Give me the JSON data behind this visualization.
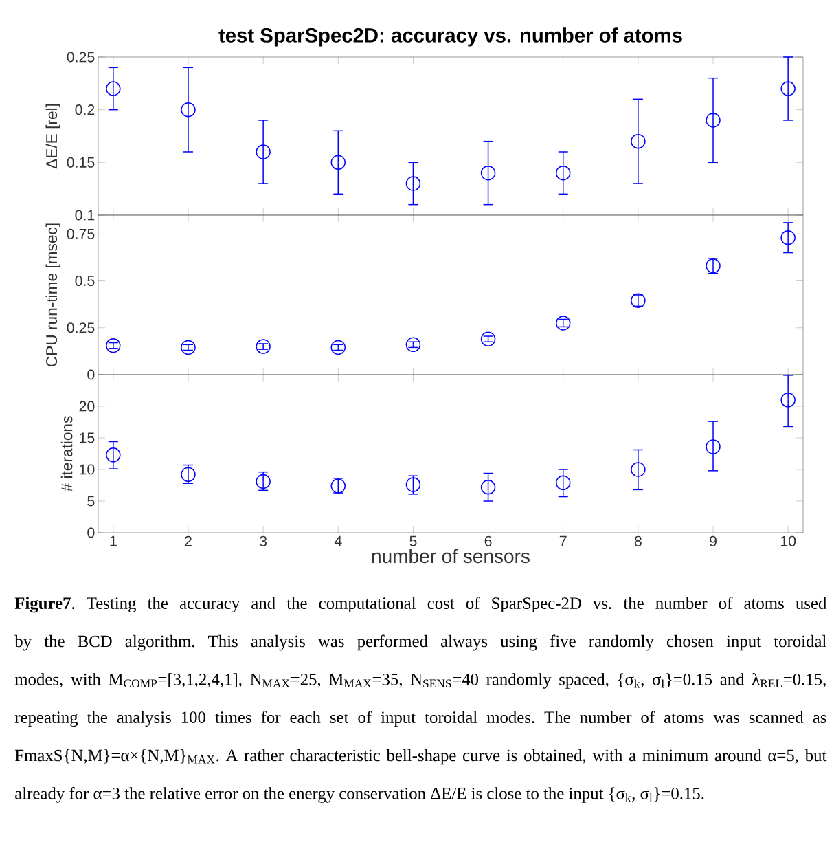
{
  "chart_data": [
    {
      "type": "scatter",
      "title": "test SparSpec2D: accuracy vs. number of atoms",
      "ylabel": "ΔE/E [rel]",
      "x": [
        1,
        2,
        3,
        4,
        5,
        6,
        7,
        8,
        9,
        10
      ],
      "xlim": [
        0.8,
        10.2
      ],
      "xticks": [
        1,
        2,
        3,
        4,
        5,
        6,
        7,
        8,
        9,
        10
      ],
      "ylim": [
        0.1,
        0.25
      ],
      "yticks": [
        0.1,
        0.15,
        0.2,
        0.25
      ],
      "tick_labels": "y",
      "marker": "circle",
      "series": [
        {
          "color": "#0000ff",
          "values": [
            0.22,
            0.2,
            0.16,
            0.15,
            0.13,
            0.14,
            0.14,
            0.17,
            0.19,
            0.22
          ],
          "errors": [
            [
              0.2,
              0.24
            ],
            [
              0.16,
              0.24
            ],
            [
              0.13,
              0.19
            ],
            [
              0.12,
              0.18
            ],
            [
              0.11,
              0.15
            ],
            [
              0.11,
              0.17
            ],
            [
              0.12,
              0.16
            ],
            [
              0.13,
              0.21
            ],
            [
              0.15,
              0.23
            ],
            [
              0.19,
              0.25
            ]
          ]
        }
      ]
    },
    {
      "type": "scatter",
      "ylabel": "CPU run-time [msec]",
      "x": [
        1,
        2,
        3,
        4,
        5,
        6,
        7,
        8,
        9,
        10
      ],
      "xlim": [
        0.8,
        10.2
      ],
      "xticks": [
        1,
        2,
        3,
        4,
        5,
        6,
        7,
        8,
        9,
        10
      ],
      "ylim": [
        0,
        0.85
      ],
      "yticks": [
        0,
        0.25,
        0.5,
        0.75
      ],
      "tick_labels": "y",
      "marker": "circle",
      "series": [
        {
          "color": "#0000ff",
          "values": [
            0.155,
            0.145,
            0.15,
            0.145,
            0.16,
            0.19,
            0.275,
            0.395,
            0.58,
            0.73
          ],
          "errors": [
            [
              0.14,
              0.17
            ],
            [
              0.13,
              0.16
            ],
            [
              0.135,
              0.165
            ],
            [
              0.13,
              0.16
            ],
            [
              0.145,
              0.175
            ],
            [
              0.175,
              0.205
            ],
            [
              0.255,
              0.295
            ],
            [
              0.365,
              0.425
            ],
            [
              0.54,
              0.62
            ],
            [
              0.65,
              0.81
            ]
          ]
        }
      ]
    },
    {
      "type": "scatter",
      "xlabel": "number of sensors",
      "ylabel": "# iterations",
      "x": [
        1,
        2,
        3,
        4,
        5,
        6,
        7,
        8,
        9,
        10
      ],
      "xlim": [
        0.8,
        10.2
      ],
      "xticks": [
        1,
        2,
        3,
        4,
        5,
        6,
        7,
        8,
        9,
        10
      ],
      "ylim": [
        0,
        25
      ],
      "yticks": [
        0,
        5,
        10,
        15,
        20
      ],
      "marker": "circle",
      "series": [
        {
          "color": "#0000ff",
          "values": [
            12.3,
            9.2,
            8.1,
            7.4,
            7.6,
            7.2,
            7.9,
            10.0,
            13.6,
            21
          ],
          "errors": [
            [
              10.1,
              14.4
            ],
            [
              7.8,
              10.7
            ],
            [
              6.7,
              9.6
            ],
            [
              6.3,
              8.6
            ],
            [
              6.1,
              9.0
            ],
            [
              5.0,
              9.4
            ],
            [
              5.7,
              10.0
            ],
            [
              6.8,
              13.1
            ],
            [
              9.8,
              17.6
            ],
            [
              16.8,
              24.9
            ]
          ]
        }
      ],
      "annotations": [
        "**Figure7**. Testing the accuracy and the computational cost of SparSpec-2D vs. the number of atoms used by the BCD algorithm. This analysis was performed always using five randomly chosen input toroidal modes, with M$_{COMP}$=[3,1,2,4,1], N$_{MAX}$=25, M$_{MAX}$=35, N$_{SENS}$=40 randomly spaced, {σ$_{k}$, σ$_{l}$}=0.15 and λ$_{REL}$=0.15, repeating the analysis 100 times for each set of input toroidal modes. The number of atoms was scanned as FmaxS{N,M}=α×{N,M}$_{MAX}$. A rather characteristic bell-shape curve is obtained, with a minimum around α=5, but already for α=3 the relative error on the energy conservation ΔE/E is close to the input {σ$_{k}$, σ$_{l}$}=0.15."
      ]
    }
  ]
}
